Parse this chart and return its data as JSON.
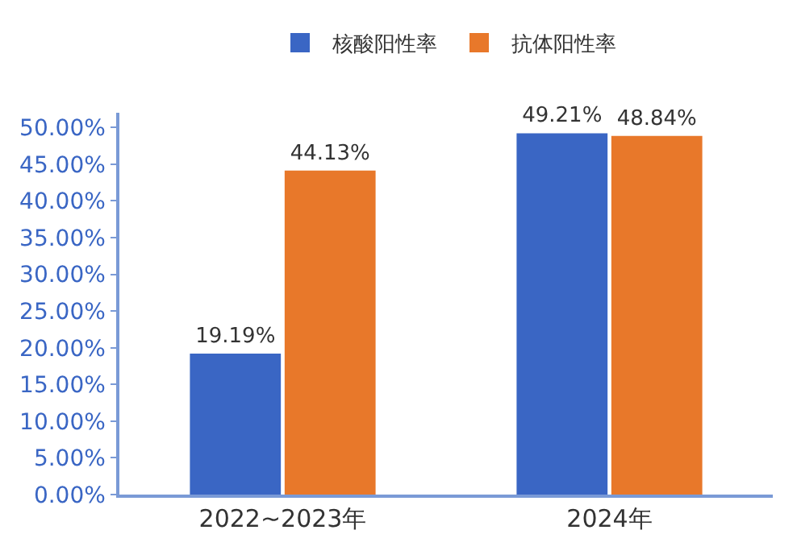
{
  "chart_data": {
    "type": "bar",
    "categories": [
      "2022~2023年",
      "2024年"
    ],
    "series": [
      {
        "name": "核酸阳性率",
        "color": "#3a66c4",
        "values": [
          19.19,
          49.21
        ]
      },
      {
        "name": "抗体阳性率",
        "color": "#e8782a",
        "values": [
          44.13,
          48.84
        ]
      }
    ],
    "value_labels": [
      [
        "19.19%",
        "49.21%"
      ],
      [
        "44.13%",
        "48.84%"
      ]
    ],
    "ylim": [
      0,
      52
    ],
    "yticks": [
      {
        "value": 0,
        "label": "0.00%"
      },
      {
        "value": 5,
        "label": "5.00%"
      },
      {
        "value": 10,
        "label": "10.00%"
      },
      {
        "value": 15,
        "label": "15.00%"
      },
      {
        "value": 20,
        "label": "20.00%"
      },
      {
        "value": 25,
        "label": "25.00%"
      },
      {
        "value": 30,
        "label": "30.00%"
      },
      {
        "value": 35,
        "label": "35.00%"
      },
      {
        "value": 40,
        "label": "40.00%"
      },
      {
        "value": 45,
        "label": "45.00%"
      },
      {
        "value": 50,
        "label": "50.00%"
      }
    ],
    "grid": false,
    "legend": "top"
  }
}
